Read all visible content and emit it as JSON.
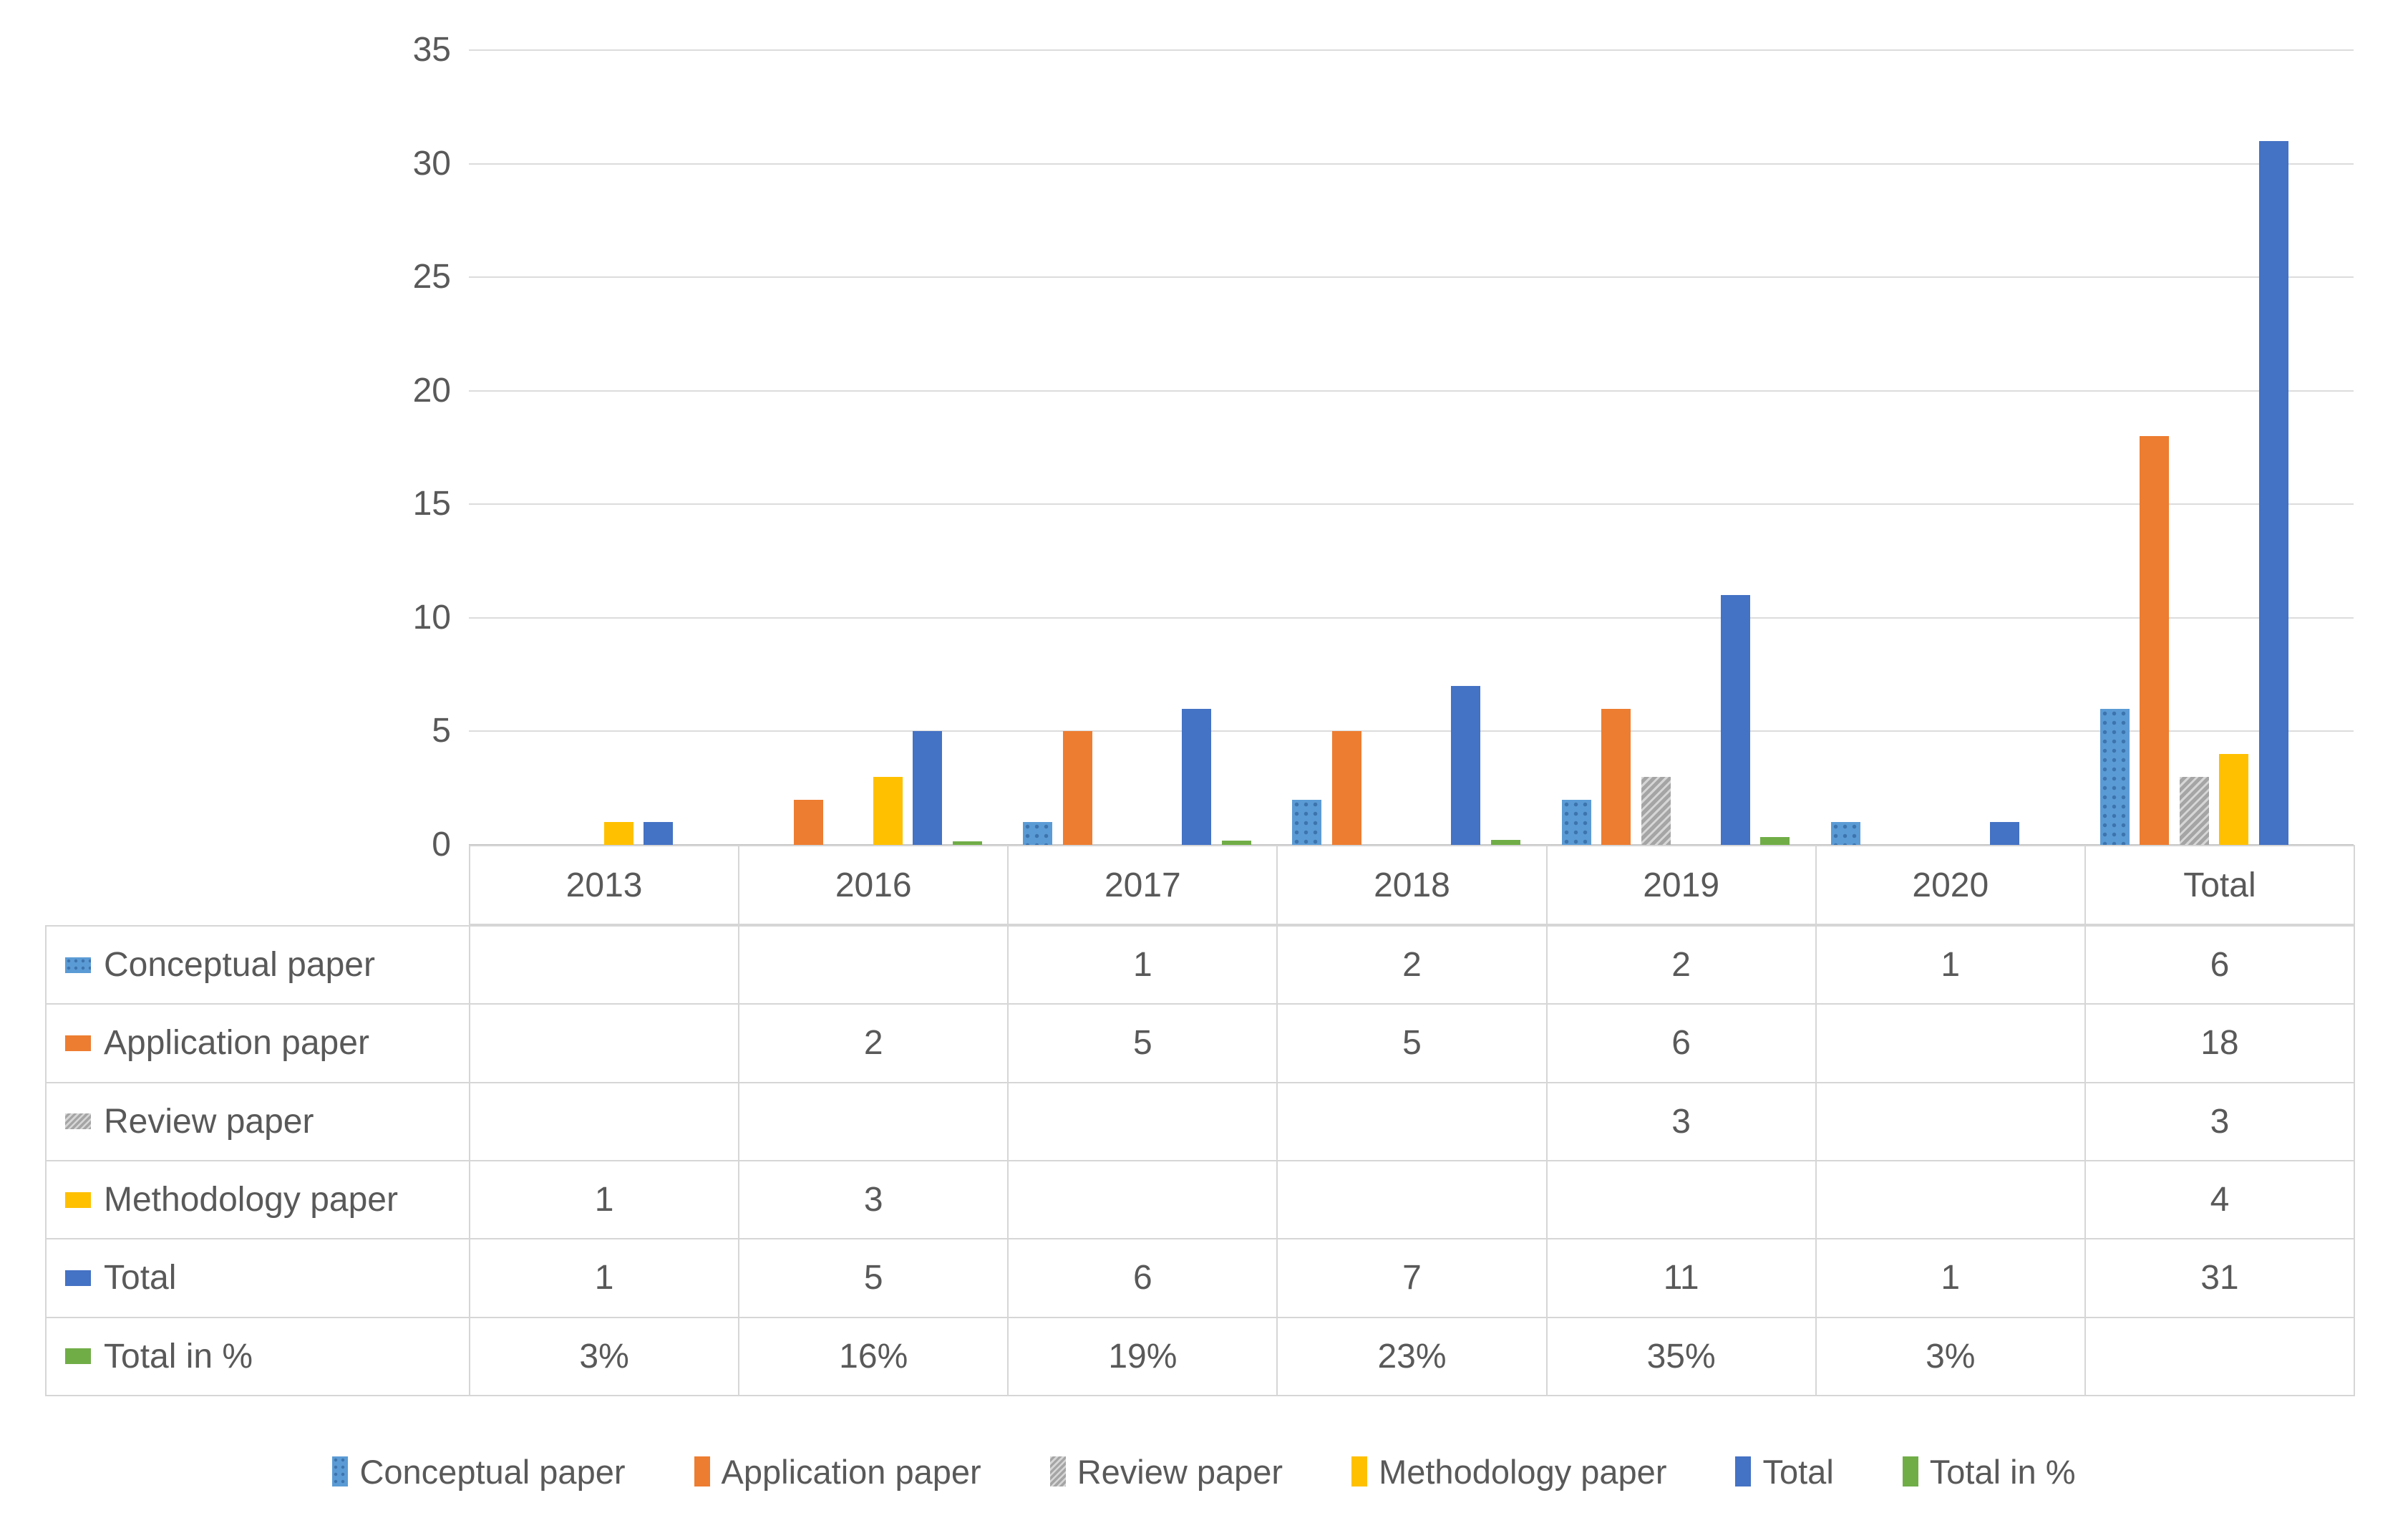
{
  "chart_data": {
    "type": "bar",
    "title": "",
    "xlabel": "",
    "ylabel": "",
    "categories": [
      "2013",
      "2016",
      "2017",
      "2018",
      "2019",
      "2020",
      "Total"
    ],
    "series": [
      {
        "name": "Conceptual paper",
        "color": "#5B9BD5",
        "pattern": "dots",
        "values": [
          null,
          null,
          1,
          2,
          2,
          1,
          6
        ]
      },
      {
        "name": "Application paper",
        "color": "#ED7D31",
        "pattern": "solid",
        "values": [
          null,
          2,
          5,
          5,
          6,
          null,
          18
        ]
      },
      {
        "name": "Review paper",
        "color": "#A5A5A5",
        "pattern": "hatch",
        "values": [
          null,
          null,
          null,
          null,
          3,
          null,
          3
        ]
      },
      {
        "name": "Methodology paper",
        "color": "#FFC000",
        "pattern": "solid",
        "values": [
          1,
          3,
          null,
          null,
          null,
          null,
          4
        ]
      },
      {
        "name": "Total",
        "color": "#4472C4",
        "pattern": "solid",
        "values": [
          1,
          5,
          6,
          7,
          11,
          1,
          31
        ]
      },
      {
        "name": "Total in %",
        "color": "#70AD47",
        "pattern": "solid",
        "values": [
          0.03,
          0.16,
          0.19,
          0.23,
          0.35,
          0.03,
          null
        ]
      }
    ],
    "ylim": [
      0,
      35
    ],
    "ytick_step": 5,
    "yticks": [
      "0",
      "5",
      "10",
      "15",
      "20",
      "25",
      "30",
      "35"
    ],
    "grid": true,
    "gridline_color": "#DCDCDC",
    "axis_color": "#C0C0C0",
    "text_color": "#595959",
    "legend_position": "bottom"
  },
  "table": {
    "header": [
      "2013",
      "2016",
      "2017",
      "2018",
      "2019",
      "2020",
      "Total"
    ],
    "rows": [
      {
        "label": "Conceptual paper",
        "cells": [
          "",
          "",
          "1",
          "2",
          "2",
          "1",
          "6"
        ]
      },
      {
        "label": "Application paper",
        "cells": [
          "",
          "2",
          "5",
          "5",
          "6",
          "",
          "18"
        ]
      },
      {
        "label": "Review paper",
        "cells": [
          "",
          "",
          "",
          "",
          "3",
          "",
          "3"
        ]
      },
      {
        "label": "Methodology paper",
        "cells": [
          "1",
          "3",
          "",
          "",
          "",
          "",
          "4"
        ]
      },
      {
        "label": "Total",
        "cells": [
          "1",
          "5",
          "6",
          "7",
          "11",
          "1",
          "31"
        ]
      },
      {
        "label": "Total in %",
        "cells": [
          "3%",
          "16%",
          "19%",
          "23%",
          "35%",
          "3%",
          ""
        ]
      }
    ]
  },
  "legend": {
    "items": [
      "Conceptual paper",
      "Application paper",
      "Review paper",
      "Methodology paper",
      "Total",
      "Total in %"
    ]
  }
}
